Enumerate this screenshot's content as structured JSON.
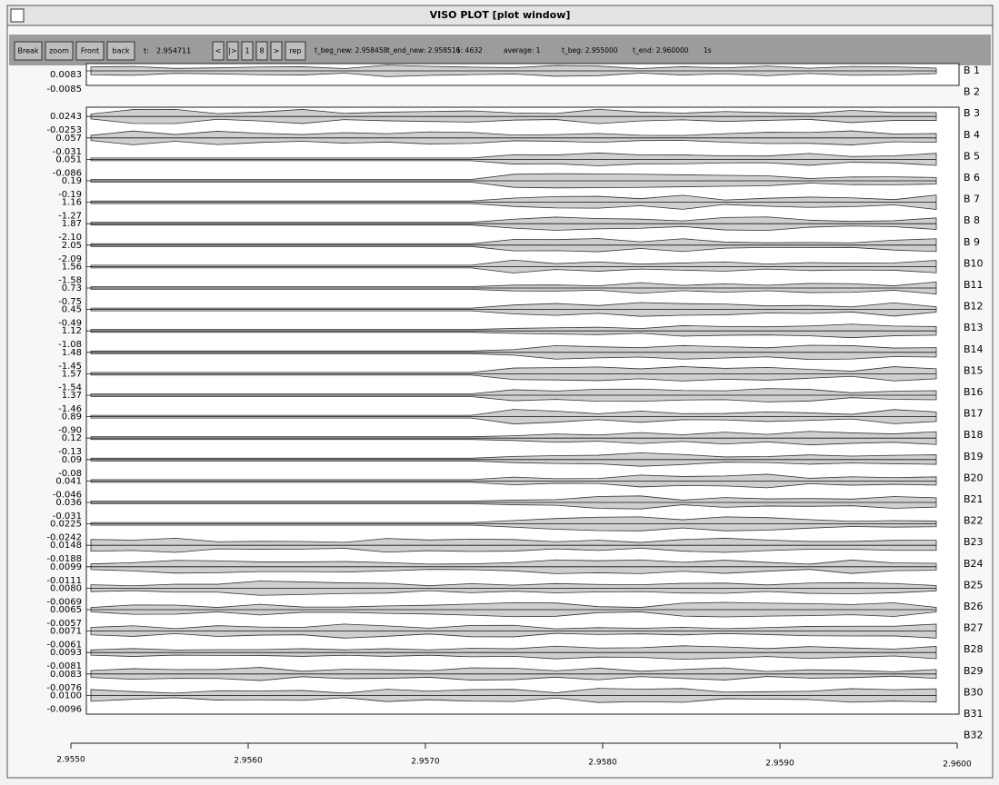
{
  "window": {
    "title": "VISO PLOT [plot window]"
  },
  "toolbar": {
    "buttons": [
      "Break",
      "zoom",
      "Front",
      "back"
    ],
    "t_label": "t:",
    "t_value": "2.954711",
    "nav": [
      "<",
      "|>",
      "1",
      "8",
      ">",
      "rep"
    ],
    "readouts": [
      "t_beg_new: 2.958458",
      "t_end_new: 2.958516",
      "1: 4632",
      "average: 1",
      "t_beg: 2.955000",
      "t_end: 2.960000",
      "1s"
    ]
  },
  "plot": {
    "channels": [
      "B 1",
      "B 2",
      "B 3",
      "B 4",
      "B 5",
      "B 6",
      "B 7",
      "B 8",
      "B 9",
      "B10",
      "B11",
      "B12",
      "B13",
      "B14",
      "B15",
      "B16",
      "B17",
      "B18",
      "B19",
      "B20",
      "B21",
      "B22",
      "B23",
      "B24",
      "B25",
      "B26",
      "B27",
      "B28",
      "B29",
      "B30",
      "B31",
      "B32"
    ],
    "top_panel_labels": [
      "0.0083",
      "-0.0085"
    ],
    "range_labels": [
      [
        "0.0243",
        "-0.0253"
      ],
      [
        "0.057",
        "-0.031"
      ],
      [
        "0.051",
        "-0.086"
      ],
      [
        "0.19",
        "-0.19"
      ],
      [
        "1.16",
        "-1.27"
      ],
      [
        "1.87",
        "-2.10"
      ],
      [
        "2.05",
        "-2.09"
      ],
      [
        "1.56",
        "-1.58"
      ],
      [
        "0.73",
        "-0.75"
      ],
      [
        "0.45",
        "-0.49"
      ],
      [
        "1.12",
        "-1.08"
      ],
      [
        "1.48",
        "-1.45"
      ],
      [
        "1.57",
        "-1.54"
      ],
      [
        "1.37",
        "-1.46"
      ],
      [
        "0.89",
        "-0.90"
      ],
      [
        "0.12",
        "-0.13"
      ],
      [
        "0.09",
        "-0.08"
      ],
      [
        "0.041",
        "-0.046"
      ],
      [
        "0.036",
        "-0.031"
      ],
      [
        "0.0225",
        "-0.0242"
      ],
      [
        "0.0148",
        "-0.0188"
      ],
      [
        "0.0099",
        "-0.0111"
      ],
      [
        "0.0080",
        "-0.0069"
      ],
      [
        "0.0065",
        "-0.0057"
      ],
      [
        "0.0071",
        "-0.0061"
      ],
      [
        "0.0093",
        "-0.0081"
      ],
      [
        "0.0083",
        "-0.0076"
      ],
      [
        "0.0100",
        "-0.0096"
      ]
    ],
    "x_ticks": [
      "2.9550",
      "2.9560",
      "2.9570",
      "2.9580",
      "2.9590",
      "2.9600"
    ]
  }
}
